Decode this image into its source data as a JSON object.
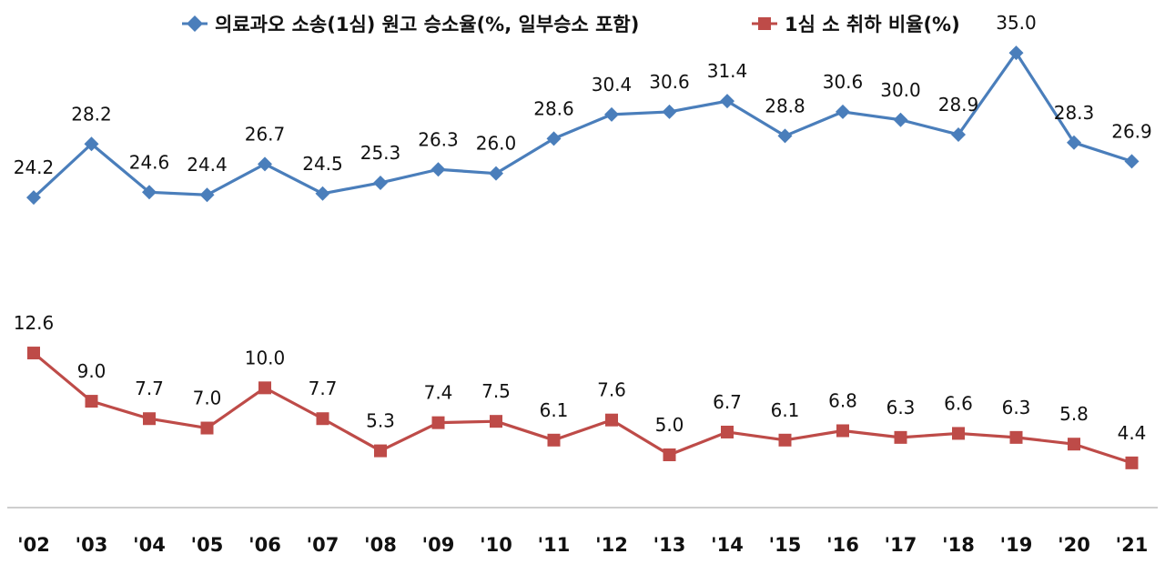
{
  "chart_data": {
    "type": "line",
    "categories": [
      "'02",
      "'03",
      "'04",
      "'05",
      "'06",
      "'07",
      "'08",
      "'09",
      "'10",
      "'11",
      "'12",
      "'13",
      "'14",
      "'15",
      "'16",
      "'17",
      "'18",
      "'19",
      "'20",
      "'21"
    ],
    "series": [
      {
        "name": "의료과오 소송(1심) 원고 승소율(%, 일부승소 포함)",
        "color": "#4A7EBB",
        "marker": "diamond",
        "values": [
          24.2,
          28.2,
          24.6,
          24.4,
          26.7,
          24.5,
          25.3,
          26.3,
          26.0,
          28.6,
          30.4,
          30.6,
          31.4,
          28.8,
          30.6,
          30.0,
          28.9,
          35.0,
          28.3,
          26.9
        ]
      },
      {
        "name": "1심 소 취하 비율(%)",
        "color": "#BE4B48",
        "marker": "square",
        "values": [
          12.6,
          9.0,
          7.7,
          7.0,
          10.0,
          7.7,
          5.3,
          7.4,
          7.5,
          6.1,
          7.6,
          5.0,
          6.7,
          6.1,
          6.8,
          6.3,
          6.6,
          6.3,
          5.8,
          4.4
        ]
      }
    ],
    "legend_position": "top",
    "grid": false
  }
}
